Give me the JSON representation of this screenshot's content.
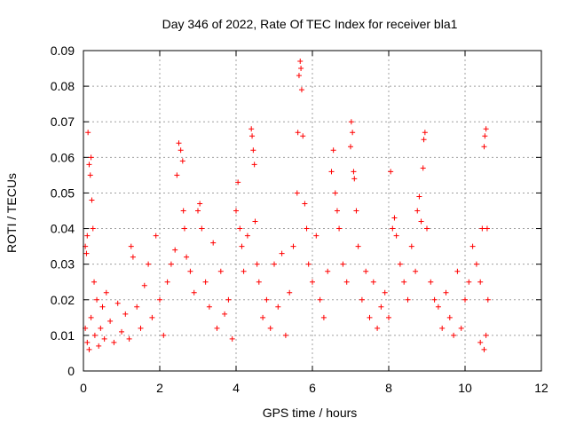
{
  "chart_data": {
    "type": "scatter",
    "title": "Day 346 of 2022, Rate Of TEC Index for receiver bla1",
    "xlabel": "GPS time / hours",
    "ylabel": "ROTI / TECUs",
    "xlim": [
      0,
      12
    ],
    "ylim": [
      0,
      0.09
    ],
    "xticks": [
      0,
      2,
      4,
      6,
      8,
      10,
      12
    ],
    "yticks": [
      0,
      0.01,
      0.02,
      0.03,
      0.04,
      0.05,
      0.06,
      0.07,
      0.08,
      0.09
    ],
    "xtick_labels": [
      "0",
      "2",
      "4",
      "6",
      "8",
      "10",
      "12"
    ],
    "ytick_labels": [
      "0",
      "0.01",
      "0.02",
      "0.03",
      "0.04",
      "0.05",
      "0.06",
      "0.07",
      "0.08",
      "0.09"
    ],
    "grid": true,
    "marker": "+",
    "color": "#ff0000",
    "series": [
      {
        "points": [
          [
            0.05,
            0.035
          ],
          [
            0.08,
            0.033
          ],
          [
            0.1,
            0.038
          ],
          [
            0.12,
            0.067
          ],
          [
            0.15,
            0.058
          ],
          [
            0.18,
            0.055
          ],
          [
            0.2,
            0.06
          ],
          [
            0.22,
            0.048
          ],
          [
            0.25,
            0.04
          ],
          [
            0.28,
            0.025
          ],
          [
            0.05,
            0.012
          ],
          [
            0.1,
            0.008
          ],
          [
            0.15,
            0.006
          ],
          [
            0.2,
            0.015
          ],
          [
            0.3,
            0.01
          ],
          [
            0.35,
            0.02
          ],
          [
            0.4,
            0.007
          ],
          [
            0.45,
            0.012
          ],
          [
            0.5,
            0.018
          ],
          [
            0.55,
            0.009
          ],
          [
            0.6,
            0.022
          ],
          [
            0.7,
            0.014
          ],
          [
            0.8,
            0.008
          ],
          [
            0.9,
            0.019
          ],
          [
            1.0,
            0.011
          ],
          [
            1.1,
            0.016
          ],
          [
            1.2,
            0.009
          ],
          [
            1.25,
            0.035
          ],
          [
            1.3,
            0.032
          ],
          [
            1.4,
            0.018
          ],
          [
            1.5,
            0.012
          ],
          [
            1.6,
            0.024
          ],
          [
            1.7,
            0.03
          ],
          [
            1.8,
            0.015
          ],
          [
            1.9,
            0.038
          ],
          [
            2.0,
            0.02
          ],
          [
            2.1,
            0.01
          ],
          [
            2.2,
            0.025
          ],
          [
            2.3,
            0.03
          ],
          [
            2.4,
            0.034
          ],
          [
            2.45,
            0.055
          ],
          [
            2.5,
            0.064
          ],
          [
            2.55,
            0.062
          ],
          [
            2.6,
            0.059
          ],
          [
            2.62,
            0.045
          ],
          [
            2.65,
            0.04
          ],
          [
            2.7,
            0.032
          ],
          [
            2.8,
            0.028
          ],
          [
            2.9,
            0.022
          ],
          [
            3.0,
            0.045
          ],
          [
            3.05,
            0.047
          ],
          [
            3.1,
            0.04
          ],
          [
            3.2,
            0.025
          ],
          [
            3.3,
            0.018
          ],
          [
            3.4,
            0.036
          ],
          [
            3.5,
            0.012
          ],
          [
            3.6,
            0.028
          ],
          [
            3.7,
            0.016
          ],
          [
            3.8,
            0.02
          ],
          [
            3.9,
            0.009
          ],
          [
            4.0,
            0.045
          ],
          [
            4.05,
            0.053
          ],
          [
            4.1,
            0.04
          ],
          [
            4.15,
            0.035
          ],
          [
            4.2,
            0.028
          ],
          [
            4.3,
            0.038
          ],
          [
            4.4,
            0.068
          ],
          [
            4.42,
            0.066
          ],
          [
            4.45,
            0.062
          ],
          [
            4.48,
            0.058
          ],
          [
            4.5,
            0.042
          ],
          [
            4.55,
            0.03
          ],
          [
            4.6,
            0.025
          ],
          [
            4.7,
            0.015
          ],
          [
            4.8,
            0.02
          ],
          [
            4.9,
            0.012
          ],
          [
            5.0,
            0.03
          ],
          [
            5.1,
            0.018
          ],
          [
            5.2,
            0.033
          ],
          [
            5.3,
            0.01
          ],
          [
            5.4,
            0.022
          ],
          [
            5.5,
            0.035
          ],
          [
            5.6,
            0.05
          ],
          [
            5.62,
            0.067
          ],
          [
            5.65,
            0.083
          ],
          [
            5.68,
            0.087
          ],
          [
            5.7,
            0.085
          ],
          [
            5.72,
            0.079
          ],
          [
            5.75,
            0.066
          ],
          [
            5.8,
            0.047
          ],
          [
            5.85,
            0.04
          ],
          [
            5.9,
            0.03
          ],
          [
            6.0,
            0.025
          ],
          [
            6.1,
            0.038
          ],
          [
            6.2,
            0.02
          ],
          [
            6.3,
            0.015
          ],
          [
            6.4,
            0.028
          ],
          [
            6.5,
            0.056
          ],
          [
            6.55,
            0.062
          ],
          [
            6.6,
            0.05
          ],
          [
            6.65,
            0.045
          ],
          [
            6.7,
            0.04
          ],
          [
            6.8,
            0.03
          ],
          [
            6.9,
            0.025
          ],
          [
            7.0,
            0.063
          ],
          [
            7.02,
            0.07
          ],
          [
            7.05,
            0.067
          ],
          [
            7.08,
            0.056
          ],
          [
            7.1,
            0.054
          ],
          [
            7.15,
            0.045
          ],
          [
            7.2,
            0.035
          ],
          [
            7.3,
            0.02
          ],
          [
            7.4,
            0.028
          ],
          [
            7.5,
            0.015
          ],
          [
            7.6,
            0.025
          ],
          [
            7.7,
            0.012
          ],
          [
            7.8,
            0.018
          ],
          [
            7.9,
            0.022
          ],
          [
            8.0,
            0.015
          ],
          [
            8.05,
            0.056
          ],
          [
            8.1,
            0.04
          ],
          [
            8.15,
            0.043
          ],
          [
            8.2,
            0.038
          ],
          [
            8.3,
            0.03
          ],
          [
            8.4,
            0.025
          ],
          [
            8.5,
            0.02
          ],
          [
            8.6,
            0.035
          ],
          [
            8.7,
            0.028
          ],
          [
            8.75,
            0.045
          ],
          [
            8.8,
            0.049
          ],
          [
            8.85,
            0.042
          ],
          [
            8.9,
            0.057
          ],
          [
            8.92,
            0.065
          ],
          [
            8.95,
            0.067
          ],
          [
            9.0,
            0.04
          ],
          [
            9.1,
            0.025
          ],
          [
            9.2,
            0.02
          ],
          [
            9.3,
            0.018
          ],
          [
            9.4,
            0.012
          ],
          [
            9.5,
            0.022
          ],
          [
            9.6,
            0.015
          ],
          [
            9.7,
            0.01
          ],
          [
            9.8,
            0.028
          ],
          [
            9.9,
            0.012
          ],
          [
            10.0,
            0.02
          ],
          [
            10.1,
            0.025
          ],
          [
            10.2,
            0.035
          ],
          [
            10.3,
            0.03
          ],
          [
            10.4,
            0.025
          ],
          [
            10.45,
            0.04
          ],
          [
            10.5,
            0.063
          ],
          [
            10.52,
            0.066
          ],
          [
            10.55,
            0.068
          ],
          [
            10.58,
            0.04
          ],
          [
            10.6,
            0.02
          ],
          [
            10.55,
            0.01
          ],
          [
            10.5,
            0.006
          ],
          [
            10.4,
            0.008
          ]
        ]
      }
    ]
  }
}
